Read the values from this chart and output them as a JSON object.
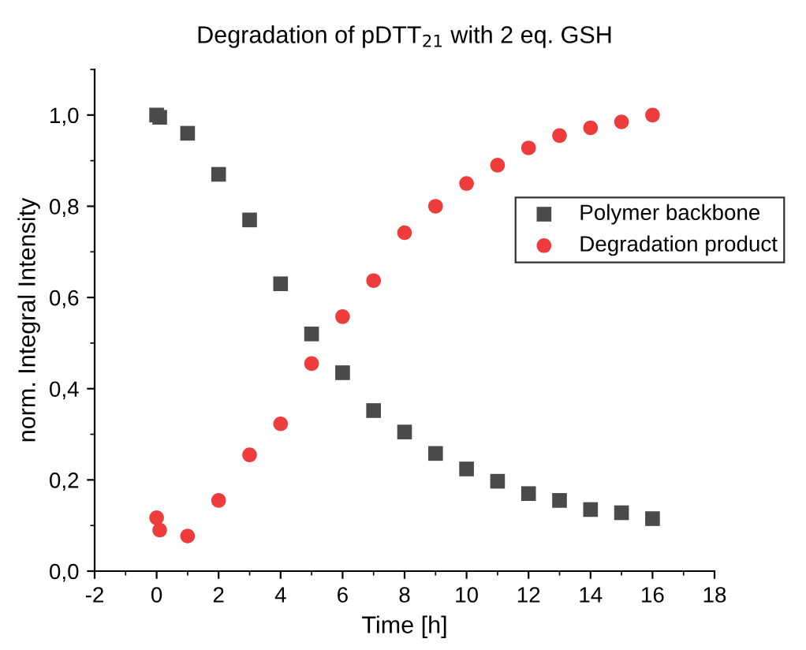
{
  "chart_data": {
    "type": "scatter",
    "title": "Degradation of pDTT$_{21}$ with 2 eq. GSH",
    "xlabel": "Time [h]",
    "ylabel": "norm. Integral Intensity",
    "xlim": [
      -2,
      18
    ],
    "xticks": [
      -2,
      0,
      2,
      4,
      6,
      8,
      10,
      12,
      14,
      16,
      18
    ],
    "ylim": [
      0,
      1.1
    ],
    "yticks": [
      {
        "value": 0,
        "label": "0,0"
      },
      {
        "value": 0.2,
        "label": "0,2"
      },
      {
        "value": 0.4,
        "label": "0,4"
      },
      {
        "value": 0.6,
        "label": "0,6"
      },
      {
        "value": 0.8,
        "label": "0,8"
      },
      {
        "value": 1.0,
        "label": "1,0"
      }
    ],
    "legend": "right",
    "grid": false,
    "series": [
      {
        "name": "Polymer backbone",
        "color": "#4a4a4a",
        "marker": "square",
        "x": [
          0,
          0.1,
          1,
          2,
          3,
          4,
          5,
          6,
          7,
          8,
          9,
          10,
          11,
          12,
          13,
          14,
          15,
          16
        ],
        "values": [
          1.0,
          0.995,
          0.96,
          0.87,
          0.77,
          0.63,
          0.52,
          0.435,
          0.352,
          0.305,
          0.258,
          0.224,
          0.197,
          0.17,
          0.155,
          0.135,
          0.128,
          0.115
        ]
      },
      {
        "name": "Degradation product",
        "color": "#ee3b3b",
        "marker": "circle",
        "x": [
          0,
          0.1,
          1,
          2,
          3,
          4,
          5,
          6,
          7,
          8,
          9,
          10,
          11,
          12,
          13,
          14,
          15,
          16
        ],
        "values": [
          0.117,
          0.09,
          0.077,
          0.155,
          0.255,
          0.323,
          0.455,
          0.558,
          0.637,
          0.742,
          0.8,
          0.85,
          0.89,
          0.928,
          0.955,
          0.972,
          0.985,
          1.0
        ]
      }
    ]
  }
}
